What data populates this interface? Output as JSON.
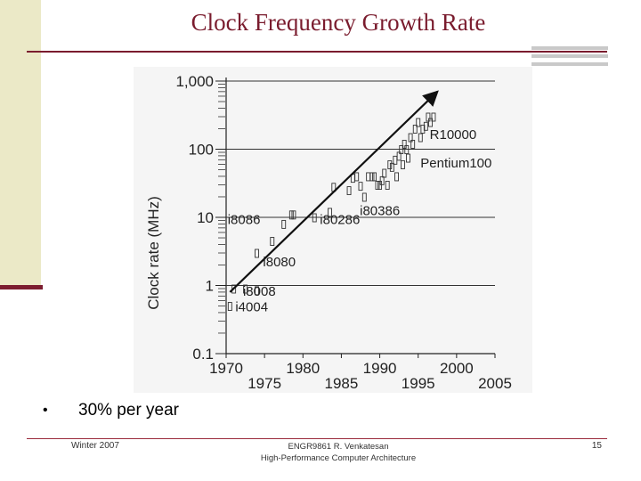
{
  "slide": {
    "title": "Clock Frequency Growth Rate",
    "bullet": "30% per year",
    "footer_left": "Winter 2007",
    "footer_center_line1": "ENGR9861   R. Venkatesan",
    "footer_center_line2": "High-Performance Computer Architecture",
    "page_number": "15",
    "colors": {
      "accent": "#7a1c2e",
      "band": "#ebe9c7"
    }
  },
  "chart_data": {
    "type": "scatter",
    "title": "",
    "xlabel": "",
    "ylabel": "Clock rate (MHz)",
    "y_scale": "log",
    "ylim": [
      0.1,
      1000
    ],
    "xlim": [
      1970,
      2005
    ],
    "y_ticks": [
      {
        "value": 1000,
        "label": "1,000"
      },
      {
        "value": 100,
        "label": "100"
      },
      {
        "value": 10,
        "label": "10"
      },
      {
        "value": 1,
        "label": "1"
      },
      {
        "value": 0.1,
        "label": "0.1"
      }
    ],
    "x_ticks_upper": [
      {
        "value": 1970,
        "label": "1970"
      },
      {
        "value": 1980,
        "label": "1980"
      },
      {
        "value": 1990,
        "label": "1990"
      },
      {
        "value": 2000,
        "label": "2000"
      }
    ],
    "x_ticks_lower": [
      {
        "value": 1975,
        "label": "1975"
      },
      {
        "value": 1985,
        "label": "1985"
      },
      {
        "value": 1995,
        "label": "1995"
      },
      {
        "value": 2005,
        "label": "2005"
      }
    ],
    "trend": {
      "x": [
        1970.5,
        1997.5
      ],
      "y": [
        0.8,
        700
      ]
    },
    "points": [
      {
        "x": 1970.5,
        "y": 0.5
      },
      {
        "x": 1971,
        "y": 0.9
      },
      {
        "x": 1972.5,
        "y": 0.9
      },
      {
        "x": 1974,
        "y": 0.85
      },
      {
        "x": 1974,
        "y": 3
      },
      {
        "x": 1976,
        "y": 4.5
      },
      {
        "x": 1977.5,
        "y": 8
      },
      {
        "x": 1978.5,
        "y": 11
      },
      {
        "x": 1978.8,
        "y": 11
      },
      {
        "x": 1981.5,
        "y": 10
      },
      {
        "x": 1983.5,
        "y": 12
      },
      {
        "x": 1984,
        "y": 28
      },
      {
        "x": 1986,
        "y": 25
      },
      {
        "x": 1986.5,
        "y": 38
      },
      {
        "x": 1987,
        "y": 40
      },
      {
        "x": 1987.5,
        "y": 29
      },
      {
        "x": 1988,
        "y": 20
      },
      {
        "x": 1988.5,
        "y": 40
      },
      {
        "x": 1989,
        "y": 40
      },
      {
        "x": 1989.3,
        "y": 40
      },
      {
        "x": 1989.7,
        "y": 30
      },
      {
        "x": 1990,
        "y": 30
      },
      {
        "x": 1990.3,
        "y": 35
      },
      {
        "x": 1990.6,
        "y": 45
      },
      {
        "x": 1991,
        "y": 30
      },
      {
        "x": 1991.3,
        "y": 60
      },
      {
        "x": 1991.6,
        "y": 55
      },
      {
        "x": 1992,
        "y": 70
      },
      {
        "x": 1992.2,
        "y": 40
      },
      {
        "x": 1992.5,
        "y": 80
      },
      {
        "x": 1992.8,
        "y": 100
      },
      {
        "x": 1993,
        "y": 60
      },
      {
        "x": 1993.2,
        "y": 120
      },
      {
        "x": 1993.5,
        "y": 100
      },
      {
        "x": 1993.7,
        "y": 75
      },
      {
        "x": 1994,
        "y": 150
      },
      {
        "x": 1994.3,
        "y": 120
      },
      {
        "x": 1994.6,
        "y": 200
      },
      {
        "x": 1995,
        "y": 250
      },
      {
        "x": 1995.3,
        "y": 150
      },
      {
        "x": 1995.6,
        "y": 200
      },
      {
        "x": 1996,
        "y": 220
      },
      {
        "x": 1996.3,
        "y": 300
      },
      {
        "x": 1996.6,
        "y": 250
      },
      {
        "x": 1997,
        "y": 300
      }
    ],
    "annotations": [
      {
        "text": "R10000",
        "x": 1996.5,
        "y": 170
      },
      {
        "text": "Pentium100",
        "x": 1995.3,
        "y": 65
      },
      {
        "text": "i80386",
        "x": 1987.4,
        "y": 13
      },
      {
        "text": "i80286",
        "x": 1982.2,
        "y": 9.5
      },
      {
        "text": "i8086",
        "x": 1970.2,
        "y": 9.5
      },
      {
        "text": "i8080",
        "x": 1974.8,
        "y": 2.3
      },
      {
        "text": "i8008",
        "x": 1972.2,
        "y": 0.85
      },
      {
        "text": "i4004",
        "x": 1971.2,
        "y": 0.5
      }
    ]
  }
}
